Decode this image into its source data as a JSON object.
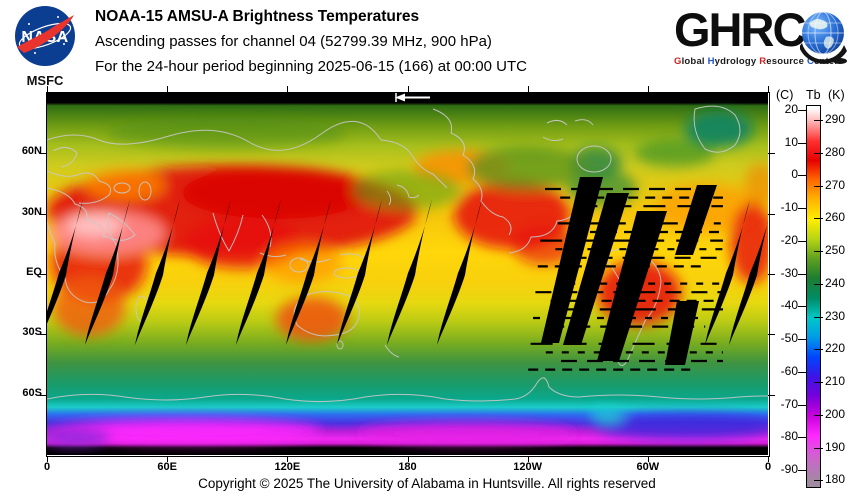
{
  "header": {
    "nasa": {
      "wordmark": "NASA",
      "center_label": "MSFC"
    },
    "title": "NOAA-15 AMSU-A Brightness Temperatures",
    "subtitle_line1": "Ascending passes for channel 04 (52799.39 MHz, 900 hPa)",
    "subtitle_line2": "For the 24-hour period beginning 2025-06-15 (166) at 00:00 UTC",
    "ghrc": {
      "wordmark": "GHRC",
      "tagline_parts": [
        {
          "text": "G",
          "color": "#cc2222"
        },
        {
          "text": "lobal ",
          "color": "#1a1a1a"
        },
        {
          "text": "H",
          "color": "#2255cc"
        },
        {
          "text": "ydrology ",
          "color": "#1a1a1a"
        },
        {
          "text": "R",
          "color": "#cc2222"
        },
        {
          "text": "esource ",
          "color": "#1a1a1a"
        },
        {
          "text": "C",
          "color": "#2255cc"
        },
        {
          "text": "enter",
          "color": "#1a1a1a"
        }
      ]
    }
  },
  "footer": {
    "copyright": "Copyright © 2025 The University of Alabama in Huntsville.  All rights reserved"
  },
  "chart_data": {
    "type": "heatmap",
    "title": "NOAA-15 AMSU-A Brightness Temperatures",
    "subtitle": "Ascending passes for channel 04 (52799.39 MHz, 900 hPa)",
    "period": "24-hour period beginning 2025-06-15 (166) at 00:00 UTC",
    "projection": "equirectangular world map, longitude 0-360E left to right, latitude 90N to 90S top to bottom",
    "x_axis": {
      "ticks_deg": [
        0,
        60,
        120,
        180,
        240,
        300,
        360
      ],
      "tick_labels": [
        "0",
        "60E",
        "120E",
        "180",
        "120W",
        "60W",
        "0"
      ]
    },
    "y_axis": {
      "ticks_deg": [
        60,
        30,
        0,
        -30,
        -60
      ],
      "tick_labels": [
        "60N",
        "30N",
        "EQ",
        "30S",
        "60S"
      ]
    },
    "colorbar": {
      "unit_left": "(C)",
      "label": "Tb",
      "unit_right": "(K)",
      "celsius_ticks": [
        20,
        10,
        0,
        -10,
        -20,
        -30,
        -40,
        -50,
        -60,
        -70,
        -80,
        -90
      ],
      "kelvin_ticks": [
        290,
        280,
        270,
        260,
        250,
        240,
        230,
        220,
        210,
        200,
        190,
        180
      ],
      "range_k": [
        180,
        294
      ],
      "stops": [
        {
          "k": 294,
          "color": "#ffffff"
        },
        {
          "k": 290,
          "color": "#ffb6b6"
        },
        {
          "k": 284,
          "color": "#ff3030"
        },
        {
          "k": 278,
          "color": "#e60000"
        },
        {
          "k": 272,
          "color": "#ff6a00"
        },
        {
          "k": 266,
          "color": "#ffb400"
        },
        {
          "k": 260,
          "color": "#ffee00"
        },
        {
          "k": 254,
          "color": "#b8d414"
        },
        {
          "k": 248,
          "color": "#5fa01e"
        },
        {
          "k": 242,
          "color": "#1e7d32"
        },
        {
          "k": 236,
          "color": "#008c64"
        },
        {
          "k": 230,
          "color": "#00c8c8"
        },
        {
          "k": 224,
          "color": "#009ce6"
        },
        {
          "k": 218,
          "color": "#0046ff"
        },
        {
          "k": 212,
          "color": "#3c14e6"
        },
        {
          "k": 206,
          "color": "#7800dc"
        },
        {
          "k": 200,
          "color": "#c800dc"
        },
        {
          "k": 194,
          "color": "#ff28ff"
        },
        {
          "k": 188,
          "color": "#d25fd2"
        },
        {
          "k": 180,
          "color": "#a08aa0"
        }
      ]
    },
    "no_data_color": "#000000",
    "annotations": [
      {
        "type": "left-arrow",
        "note": "white arrow at top of map near 175E pointing left (swath start marker)"
      }
    ],
    "notes": "Black diagonal slivers are gaps between ascending satellite swaths (about every 25 deg longitude, from ~25N to ~35S, leaning west toward the south). Large black swaths with horizontal dashed scan lines over the Americas (~120W-60W) indicate missing scan data. Poles (top and bottom edges) are black (no coverage)."
  }
}
